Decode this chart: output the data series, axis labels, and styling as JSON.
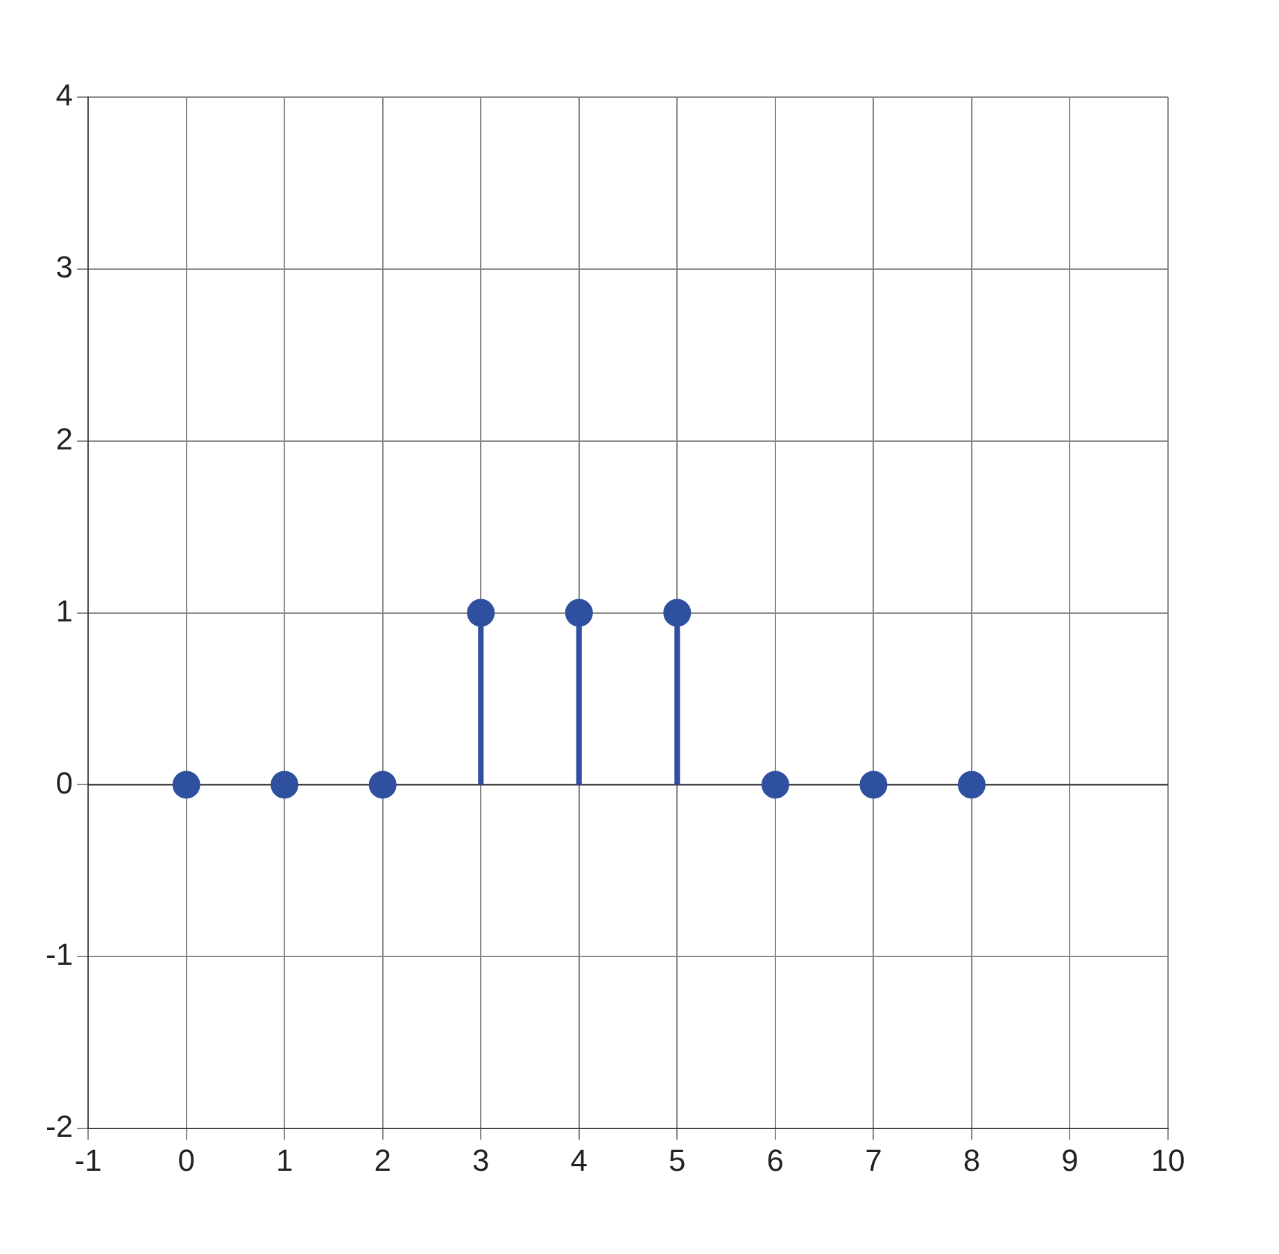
{
  "chart_data": {
    "type": "lollipop",
    "x": [
      0,
      1,
      2,
      3,
      4,
      5,
      6,
      7,
      8
    ],
    "values": [
      0,
      0,
      0,
      1,
      1,
      1,
      0,
      0,
      0
    ],
    "color": "#2f4f9f",
    "xlim": [
      -1,
      10
    ],
    "ylim": [
      -2,
      4
    ],
    "xticks": [
      -1,
      0,
      1,
      2,
      3,
      4,
      5,
      6,
      7,
      8,
      9,
      10
    ],
    "yticks": [
      -2,
      -1,
      0,
      1,
      2,
      3,
      4
    ],
    "grid": true,
    "marker": "circle"
  }
}
